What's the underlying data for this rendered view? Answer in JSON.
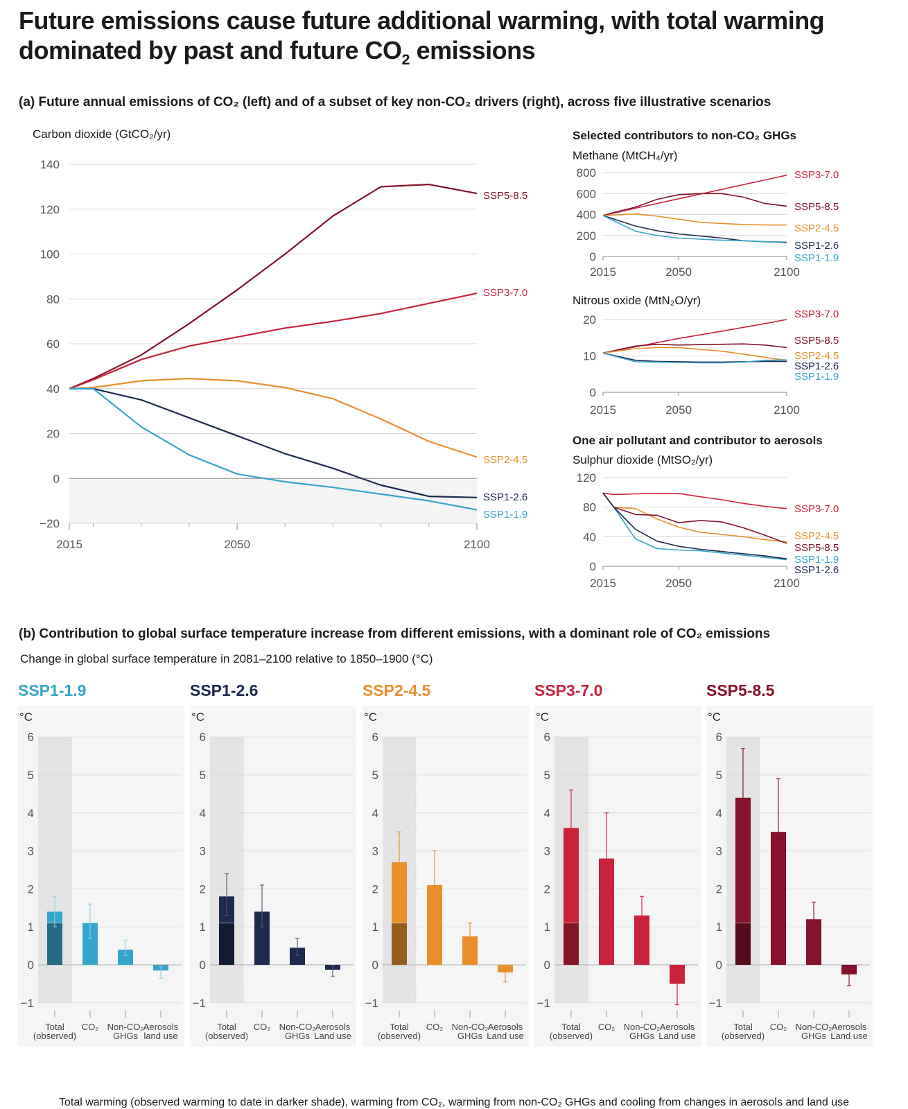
{
  "title": "Future emissions cause future additional warming, with total warming dominated by past and future CO₂ emissions",
  "panel_a": {
    "heading": "(a) Future annual emissions of CO₂ (left) and of a subset of key non-CO₂ drivers (right), across five illustrative scenarios",
    "co2_label": "Carbon dioxide (GtCO₂/yr)",
    "ghg_heading": "Selected contributors to non-CO₂ GHGs",
    "methane_label": "Methane (MtCH₄/yr)",
    "n2o_label": "Nitrous oxide (MtN₂O/yr)",
    "aerosol_heading": "One air pollutant and contributor to aerosols",
    "so2_label": "Sulphur dioxide (MtSO₂/yr)"
  },
  "panel_b": {
    "heading": "(b) Contribution to global surface temperature increase from different emissions, with a dominant role of CO₂ emissions",
    "subheading": "Change in global surface temperature in 2081–2100 relative to 1850–1900 (°C)",
    "unit": "°C",
    "footer": "Total warming (observed warming to date in darker shade), warming from CO₂, warming from non-CO₂ GHGs and cooling from changes in aerosols and land use",
    "category_labels": [
      [
        "Total",
        "(observed)"
      ],
      [
        "CO₂",
        ""
      ],
      [
        "Non-CO₂",
        "GHGs"
      ],
      [
        "Aerosols",
        "land use"
      ]
    ],
    "category_labels_alt": [
      [
        "Total",
        "(observed)"
      ],
      [
        "CO₂",
        ""
      ],
      [
        "Non-CO₂",
        "GHGs"
      ],
      [
        "Aerosols",
        "Land use"
      ]
    ]
  },
  "colors": {
    "SSP1-1.9": "#35a5cb",
    "SSP1-2.6": "#1c2a4e",
    "SSP2-4.5": "#e88f2c",
    "SSP3-7.0": "#c8233a",
    "SSP5-8.5": "#85112c"
  },
  "chart_data": [
    {
      "id": "co2",
      "type": "line",
      "title": "Carbon dioxide (GtCO₂/yr)",
      "x_ticks": [
        2015,
        2050,
        2100
      ],
      "y_ticks": [
        140,
        120,
        100,
        80,
        60,
        40,
        20,
        0,
        -20
      ],
      "ylim": [
        -20,
        140
      ],
      "xlim": [
        2015,
        2100
      ],
      "series": [
        {
          "name": "SSP5-8.5",
          "x": [
            2015,
            2020,
            2030,
            2040,
            2050,
            2060,
            2070,
            2080,
            2090,
            2100
          ],
          "y": [
            40,
            44.5,
            55,
            69,
            84,
            100,
            117,
            130,
            131,
            127
          ]
        },
        {
          "name": "SSP3-7.0",
          "x": [
            2015,
            2020,
            2030,
            2040,
            2050,
            2060,
            2070,
            2080,
            2090,
            2100
          ],
          "y": [
            40,
            44,
            53,
            59,
            63,
            67,
            70,
            73.5,
            78,
            82.5
          ]
        },
        {
          "name": "SSP2-4.5",
          "x": [
            2015,
            2020,
            2030,
            2040,
            2050,
            2060,
            2070,
            2080,
            2090,
            2100
          ],
          "y": [
            40,
            40.5,
            43.5,
            44.5,
            43.5,
            40.5,
            35.5,
            26.5,
            16.5,
            9.5
          ]
        },
        {
          "name": "SSP1-2.6",
          "x": [
            2015,
            2020,
            2030,
            2040,
            2050,
            2060,
            2070,
            2080,
            2090,
            2100
          ],
          "y": [
            40,
            40,
            35,
            27,
            19,
            11,
            4.5,
            -3,
            -8,
            -8.5
          ]
        },
        {
          "name": "SSP1-1.9",
          "x": [
            2015,
            2020,
            2030,
            2040,
            2050,
            2060,
            2070,
            2080,
            2090,
            2100
          ],
          "y": [
            40,
            40,
            23,
            10.5,
            2,
            -1.5,
            -4,
            -7,
            -10,
            -14
          ]
        }
      ],
      "labels": [
        "SSP5-8.5",
        "SSP3-7.0",
        "SSP2-4.5",
        "SSP1-2.6",
        "SSP1-1.9"
      ]
    },
    {
      "id": "methane",
      "type": "line",
      "title": "Methane (MtCH₄/yr)",
      "x_ticks": [
        2015,
        2050,
        2100
      ],
      "y_ticks": [
        800,
        600,
        400,
        200,
        0
      ],
      "ylim": [
        0,
        800
      ],
      "xlim": [
        2015,
        2100
      ],
      "series": [
        {
          "name": "SSP3-7.0",
          "x": [
            2015,
            2030,
            2050,
            2070,
            2090,
            2100
          ],
          "y": [
            390,
            460,
            550,
            640,
            730,
            775
          ]
        },
        {
          "name": "SSP5-8.5",
          "x": [
            2015,
            2020,
            2030,
            2040,
            2050,
            2060,
            2070,
            2080,
            2090,
            2100
          ],
          "y": [
            390,
            420,
            470,
            545,
            590,
            600,
            600,
            565,
            505,
            480
          ]
        },
        {
          "name": "SSP2-4.5",
          "x": [
            2015,
            2030,
            2040,
            2050,
            2060,
            2070,
            2080,
            2090,
            2100
          ],
          "y": [
            390,
            405,
            385,
            355,
            325,
            315,
            305,
            300,
            300
          ]
        },
        {
          "name": "SSP1-2.6",
          "x": [
            2015,
            2030,
            2040,
            2050,
            2060,
            2070,
            2080,
            2090,
            2100
          ],
          "y": [
            390,
            290,
            245,
            215,
            195,
            175,
            150,
            140,
            135
          ]
        },
        {
          "name": "SSP1-1.9",
          "x": [
            2015,
            2030,
            2040,
            2050,
            2060,
            2070,
            2080,
            2090,
            2100
          ],
          "y": [
            390,
            240,
            200,
            175,
            165,
            155,
            150,
            140,
            130
          ]
        }
      ],
      "labels": [
        "SSP3-7.0",
        "SSP5-8.5",
        "SSP2-4.5",
        "SSP1-2.6",
        "SSP1-1.9"
      ]
    },
    {
      "id": "n2o",
      "type": "line",
      "title": "Nitrous oxide (MtN₂O/yr)",
      "x_ticks": [
        2015,
        2050,
        2100
      ],
      "y_ticks": [
        20,
        10,
        0
      ],
      "ylim": [
        0,
        20
      ],
      "xlim": [
        2015,
        2100
      ],
      "series": [
        {
          "name": "SSP3-7.0",
          "x": [
            2015,
            2030,
            2050,
            2070,
            2090,
            2100
          ],
          "y": [
            10.8,
            12.5,
            14.8,
            16.8,
            18.9,
            20
          ]
        },
        {
          "name": "SSP5-8.5",
          "x": [
            2015,
            2030,
            2040,
            2050,
            2060,
            2070,
            2080,
            2090,
            2100
          ],
          "y": [
            10.8,
            12.7,
            13.2,
            13,
            13.1,
            13.2,
            13.3,
            13,
            12.3
          ]
        },
        {
          "name": "SSP2-4.5",
          "x": [
            2015,
            2030,
            2040,
            2050,
            2060,
            2070,
            2080,
            2090,
            2100
          ],
          "y": [
            10.8,
            12,
            12.3,
            12.3,
            11.8,
            11.3,
            10.5,
            9.6,
            8.8
          ]
        },
        {
          "name": "SSP1-2.6",
          "x": [
            2015,
            2030,
            2040,
            2050,
            2060,
            2070,
            2080,
            2090,
            2100
          ],
          "y": [
            10.8,
            8.8,
            8.5,
            8.4,
            8.3,
            8.3,
            8.4,
            8.5,
            8.5
          ]
        },
        {
          "name": "SSP1-1.9",
          "x": [
            2015,
            2030,
            2040,
            2050,
            2060,
            2070,
            2080,
            2090,
            2100
          ],
          "y": [
            10.8,
            8.4,
            8.3,
            8.2,
            8.1,
            8.1,
            8.3,
            8.8,
            8.9
          ]
        }
      ],
      "labels": [
        "SSP3-7.0",
        "SSP5-8.5",
        "SSP2-4.5",
        "SSP1-2.6",
        "SSP1-1.9"
      ]
    },
    {
      "id": "so2",
      "type": "line",
      "title": "Sulphur dioxide (MtSO₂/yr)",
      "x_ticks": [
        2015,
        2050,
        2100
      ],
      "y_ticks": [
        120,
        80,
        40,
        0
      ],
      "ylim": [
        0,
        120
      ],
      "xlim": [
        2015,
        2100
      ],
      "series": [
        {
          "name": "SSP3-7.0",
          "x": [
            2015,
            2020,
            2030,
            2040,
            2050,
            2060,
            2070,
            2080,
            2090,
            2100
          ],
          "y": [
            99,
            97,
            98,
            98.5,
            98.5,
            94,
            90,
            85,
            81,
            78
          ]
        },
        {
          "name": "SSP2-4.5",
          "x": [
            2015,
            2020,
            2030,
            2040,
            2050,
            2060,
            2070,
            2080,
            2090,
            2100
          ],
          "y": [
            99,
            80,
            78,
            64,
            53,
            46,
            43,
            40,
            36,
            33
          ]
        },
        {
          "name": "SSP5-8.5",
          "x": [
            2015,
            2020,
            2030,
            2040,
            2050,
            2060,
            2070,
            2080,
            2090,
            2100
          ],
          "y": [
            99,
            80,
            70,
            69,
            59,
            62,
            60,
            52,
            42,
            31
          ]
        },
        {
          "name": "SSP1-1.9",
          "x": [
            2015,
            2020,
            2030,
            2040,
            2050,
            2060,
            2070,
            2080,
            2090,
            2100
          ],
          "y": [
            99,
            80,
            37,
            24,
            22,
            21,
            18,
            15,
            12,
            9
          ]
        },
        {
          "name": "SSP1-2.6",
          "x": [
            2015,
            2020,
            2030,
            2040,
            2050,
            2060,
            2070,
            2080,
            2090,
            2100
          ],
          "y": [
            99,
            80,
            50,
            34,
            27,
            23,
            20,
            17,
            14,
            10
          ]
        }
      ],
      "labels": [
        "SSP3-7.0",
        "SSP2-4.5",
        "SSP5-8.5",
        "SSP1-1.9",
        "SSP1-2.6"
      ]
    },
    {
      "id": "warming",
      "type": "bar",
      "title": "Change in global surface temperature in 2081–2100 relative to 1850–1900 (°C)",
      "y_ticks": [
        6,
        5,
        4,
        3,
        2,
        1,
        0,
        -1
      ],
      "ylim": [
        -1,
        6
      ],
      "observed": 1.1,
      "series": [
        {
          "name": "SSP1-1.9",
          "values": [
            1.4,
            1.1,
            0.4,
            -0.15
          ],
          "low": [
            1.0,
            0.7,
            0.25,
            -0.35
          ],
          "high": [
            1.8,
            1.6,
            0.65,
            -0.05
          ]
        },
        {
          "name": "SSP1-2.6",
          "values": [
            1.8,
            1.4,
            0.45,
            -0.13
          ],
          "low": [
            1.3,
            1.0,
            0.25,
            -0.3
          ],
          "high": [
            2.4,
            2.1,
            0.7,
            -0.02
          ]
        },
        {
          "name": "SSP2-4.5",
          "values": [
            2.7,
            2.1,
            0.75,
            -0.2
          ],
          "low": [
            2.1,
            1.6,
            0.45,
            -0.45
          ],
          "high": [
            3.5,
            3.0,
            1.1,
            -0.03
          ]
        },
        {
          "name": "SSP3-7.0",
          "values": [
            3.6,
            2.8,
            1.3,
            -0.5
          ],
          "low": [
            2.8,
            2.1,
            0.9,
            -1.05
          ],
          "high": [
            4.6,
            4.0,
            1.8,
            -0.05
          ]
        },
        {
          "name": "SSP5-8.5",
          "values": [
            4.4,
            3.5,
            1.2,
            -0.25
          ],
          "low": [
            3.3,
            2.6,
            0.8,
            -0.55
          ],
          "high": [
            5.7,
            4.9,
            1.65,
            -0.03
          ]
        }
      ]
    }
  ]
}
